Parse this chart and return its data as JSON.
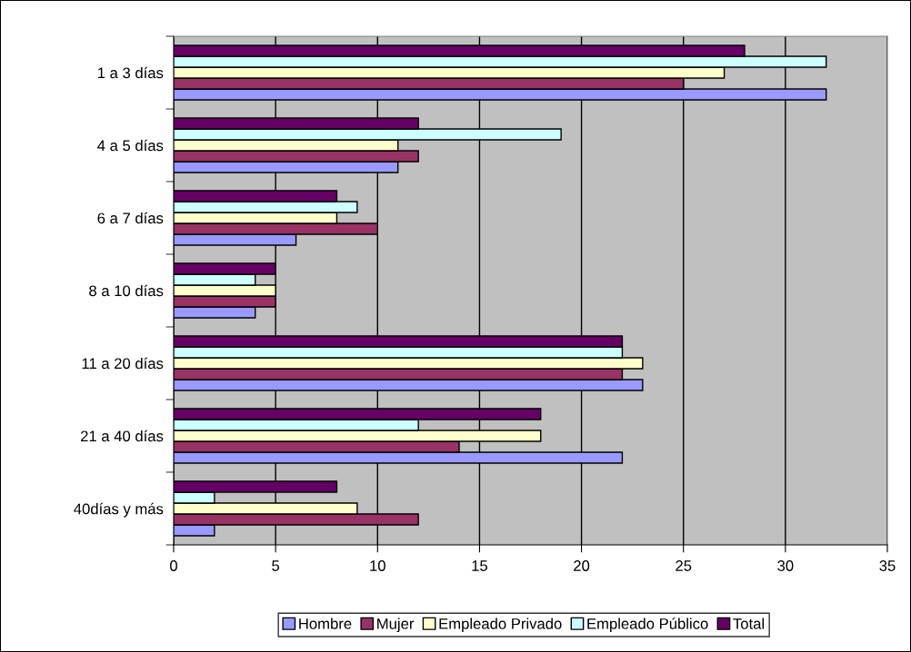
{
  "chart_data": {
    "type": "bar",
    "orientation": "horizontal",
    "categories": [
      "1 a 3 días",
      "4 a 5 días",
      "6 a 7 días",
      "8 a 10 días",
      "11 a 20 días",
      "21 a 40 días",
      "40días y más"
    ],
    "series": [
      {
        "name": "Hombre",
        "color": "#9999ff",
        "values": [
          32,
          11,
          6,
          4,
          23,
          22,
          2
        ]
      },
      {
        "name": "Mujer",
        "color": "#993366",
        "values": [
          25,
          12,
          10,
          5,
          22,
          14,
          12
        ]
      },
      {
        "name": "Empleado Privado",
        "color": "#ffffcc",
        "values": [
          27,
          11,
          8,
          5,
          23,
          18,
          9
        ]
      },
      {
        "name": "Empleado Público",
        "color": "#ccffff",
        "values": [
          32,
          19,
          9,
          4,
          22,
          12,
          2
        ]
      },
      {
        "name": "Total",
        "color": "#660066",
        "values": [
          28,
          12,
          8,
          5,
          22,
          18,
          8
        ]
      }
    ],
    "xlim": [
      0,
      35
    ],
    "xticks": [
      0,
      5,
      10,
      15,
      20,
      25,
      30,
      35
    ],
    "grid": "x",
    "legend": "bottom"
  }
}
